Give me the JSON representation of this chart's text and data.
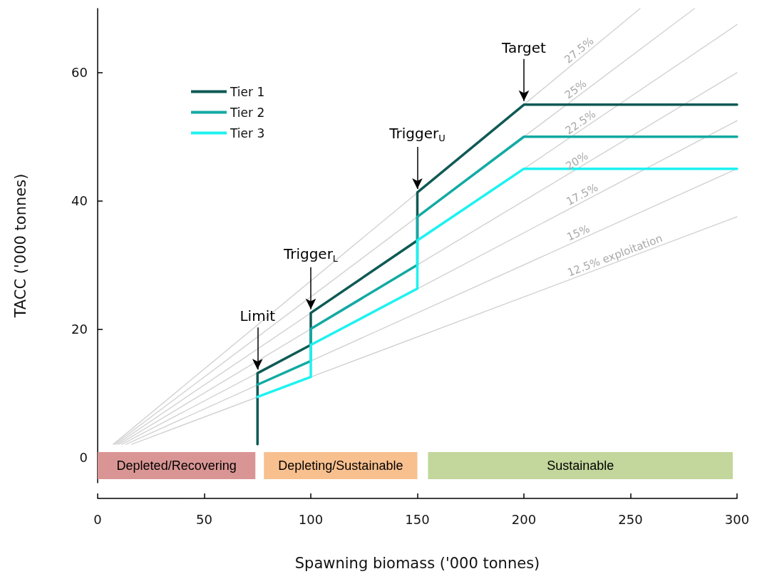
{
  "chart_data": {
    "type": "line",
    "xlabel": "Spawning biomass ('000 tonnes)",
    "ylabel": "TACC ('000 tonnes)",
    "xlim": [
      0,
      300
    ],
    "xticks": [
      0,
      50,
      100,
      150,
      200,
      250,
      300
    ],
    "ylim": [
      -4,
      70
    ],
    "yticks": [
      0,
      20,
      40,
      60
    ],
    "grid": false,
    "legend": "top left",
    "marker": "none",
    "line_style": "solid",
    "series": [
      {
        "name": "Tier 1",
        "color": "#0f5a55",
        "x": [
          75,
          75,
          100,
          100,
          150,
          150,
          200,
          300
        ],
        "values": [
          2,
          13.1,
          17.5,
          22.5,
          33.8,
          41.3,
          55,
          55
        ]
      },
      {
        "name": "Tier 2",
        "color": "#12aaa3",
        "x": [
          75,
          100,
          100,
          150,
          150,
          200,
          300
        ],
        "values": [
          11.3,
          15,
          20,
          30,
          37.5,
          50,
          50
        ]
      },
      {
        "name": "Tier 3",
        "color": "#1ef2f0",
        "x": [
          75,
          100,
          100,
          150,
          150,
          200,
          300
        ],
        "values": [
          9.4,
          12.5,
          17.5,
          26.3,
          33.8,
          45,
          45
        ]
      },
      {
        "name": "27.5%",
        "color": "#d4d4d4",
        "x": [
          7.3,
          254.5
        ],
        "values": [
          2,
          70
        ]
      },
      {
        "name": "25%",
        "color": "#d4d4d4",
        "x": [
          8,
          280
        ],
        "values": [
          2,
          70
        ]
      },
      {
        "name": "22.5%",
        "color": "#d4d4d4",
        "x": [
          8.9,
          300
        ],
        "values": [
          2,
          67.5
        ]
      },
      {
        "name": "20%",
        "color": "#d4d4d4",
        "x": [
          10,
          300
        ],
        "values": [
          2,
          60
        ]
      },
      {
        "name": "17.5%",
        "color": "#d4d4d4",
        "x": [
          11.4,
          300
        ],
        "values": [
          2,
          52.5
        ]
      },
      {
        "name": "15%",
        "color": "#d4d4d4",
        "x": [
          13.3,
          300
        ],
        "values": [
          2,
          45
        ]
      },
      {
        "name": "12.5% exploitation",
        "color": "#d4d4d4",
        "x": [
          16,
          300
        ],
        "values": [
          2,
          37.5
        ]
      }
    ],
    "bands": [
      {
        "axis": "x",
        "from": 0,
        "to": 74,
        "label": "Depleted/Recovering",
        "color": "#d99594"
      },
      {
        "axis": "x",
        "from": 78,
        "to": 150,
        "label": "Depleting/Sustainable",
        "color": "#f8c08f"
      },
      {
        "axis": "x",
        "from": 155,
        "to": 298,
        "label": "Sustainable",
        "color": "#c3d69b"
      }
    ],
    "annotations": [
      {
        "text": "Limit",
        "x": 75,
        "y": 13.1
      },
      {
        "text": "Trigger$_{L}$",
        "x": 100,
        "y": 22.5
      },
      {
        "text": "Trigger$_{U}$",
        "x": 150,
        "y": 41.3
      },
      {
        "text": "Target",
        "x": 200,
        "y": 55
      }
    ]
  }
}
